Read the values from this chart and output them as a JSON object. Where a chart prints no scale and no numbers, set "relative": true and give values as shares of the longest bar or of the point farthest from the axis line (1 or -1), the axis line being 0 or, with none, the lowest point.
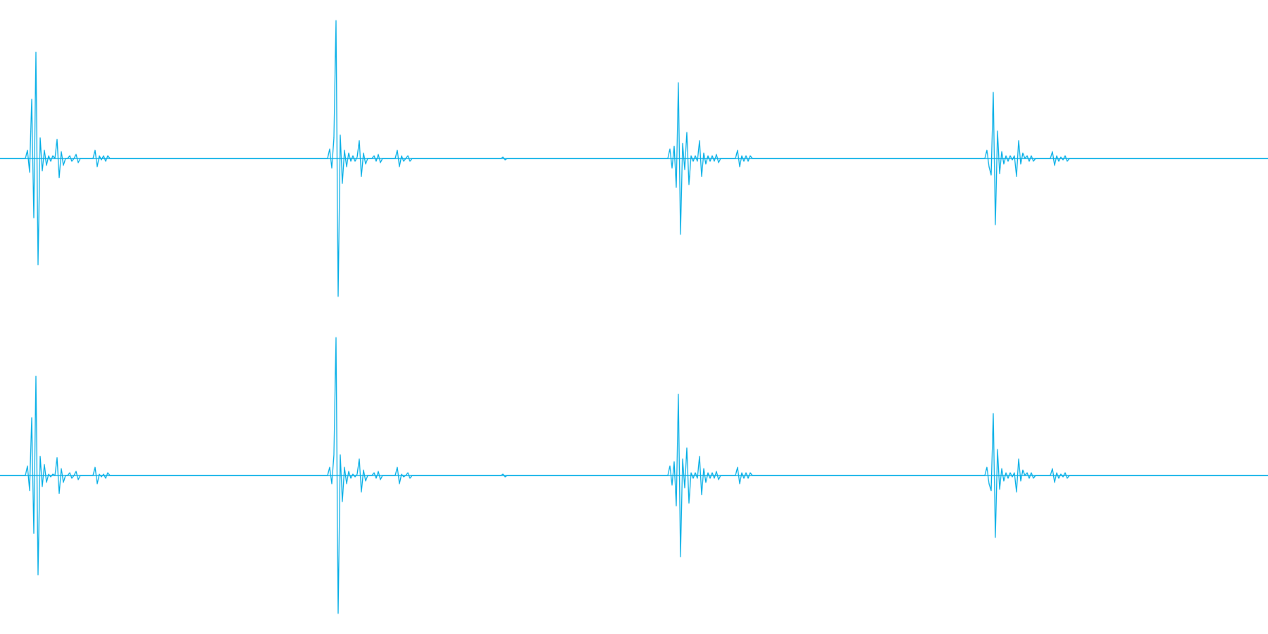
{
  "chart_data": [
    {
      "type": "line",
      "relative": true,
      "color": "#00ade6",
      "ref_lines": [
        {
          "axis": "y",
          "value": 0,
          "color": "#00ade6"
        }
      ],
      "categories": [
        null,
        null,
        null,
        null,
        null,
        null,
        null,
        null,
        null,
        null,
        null,
        null,
        null,
        null,
        null,
        null,
        null,
        null,
        null,
        null,
        null,
        null,
        null,
        null,
        null,
        null,
        null,
        null,
        null,
        null,
        null,
        null,
        null,
        null,
        null,
        null,
        null,
        null,
        null,
        null,
        null,
        null,
        null,
        null,
        null,
        null,
        null,
        null,
        null,
        null,
        null,
        null,
        null,
        null,
        null,
        null,
        null,
        null,
        null,
        null,
        null,
        null,
        null,
        null,
        null,
        null,
        null,
        null,
        null,
        null,
        null,
        null,
        null,
        null,
        null,
        null,
        null,
        null,
        null,
        null,
        null,
        null,
        null,
        null,
        null,
        null,
        null,
        null,
        null,
        null,
        null,
        null,
        null,
        null,
        null,
        null,
        null,
        null,
        null,
        null,
        null,
        null,
        null,
        null,
        null,
        null,
        null,
        null,
        null,
        null,
        null,
        null,
        null,
        null,
        null,
        null,
        null,
        null,
        null,
        null,
        null,
        null,
        null,
        null,
        null,
        null,
        null,
        null,
        null,
        null,
        null,
        null,
        null,
        null,
        null,
        null,
        null,
        null,
        null,
        null,
        null,
        null,
        null,
        null,
        null,
        null,
        null,
        null,
        null,
        null,
        null,
        null,
        null,
        null,
        null,
        null,
        null,
        null,
        null,
        null,
        null,
        null,
        null,
        null,
        null,
        null,
        null,
        null,
        null,
        null,
        null,
        null,
        null,
        null,
        null,
        null,
        null,
        null,
        null,
        null,
        null,
        null,
        null,
        null,
        null,
        null,
        null,
        null,
        null,
        null,
        null,
        null,
        null,
        null,
        null,
        null,
        null,
        null,
        null,
        null,
        null,
        null,
        null,
        null,
        null,
        null,
        null,
        null,
        null,
        null,
        null,
        null,
        null,
        null,
        null,
        null,
        null,
        null,
        null,
        null,
        null,
        null,
        null,
        null,
        null,
        null,
        null,
        null,
        null,
        null,
        null,
        null,
        null,
        null,
        null,
        null,
        null,
        null,
        null,
        null,
        null,
        null,
        null,
        null,
        null,
        null,
        null,
        null,
        null,
        null,
        null,
        null,
        null,
        null,
        null,
        null,
        null,
        null,
        null,
        null,
        null,
        null,
        null,
        null,
        null,
        null,
        null,
        null,
        null,
        null,
        null,
        null,
        null,
        null,
        null,
        null,
        null,
        null,
        null,
        null,
        null,
        null,
        null,
        null,
        null,
        null,
        null,
        null,
        null,
        null,
        null,
        null,
        null,
        null,
        null,
        null,
        null,
        null,
        null,
        null,
        null,
        null,
        null,
        null,
        null,
        null,
        null,
        null,
        null,
        null,
        null,
        null,
        null,
        null,
        null,
        null,
        null,
        null,
        null,
        null,
        null,
        null,
        null,
        null,
        null,
        null,
        null,
        null,
        null,
        null,
        null,
        null,
        null,
        null,
        null,
        null,
        null,
        null,
        null,
        null,
        null,
        null,
        null,
        null,
        null,
        null,
        null,
        null,
        null,
        null,
        null,
        null,
        null,
        null,
        null,
        null,
        null,
        null,
        null,
        null,
        null,
        null,
        null,
        null,
        null,
        null,
        null,
        null,
        null,
        null,
        null,
        null,
        null,
        null,
        null,
        null,
        null,
        null,
        null,
        null,
        null,
        null,
        null,
        null,
        null,
        null,
        null,
        null,
        null,
        null,
        null,
        null,
        null,
        null,
        null,
        null,
        null,
        null,
        null,
        null,
        null,
        null,
        null,
        null,
        null,
        null,
        null,
        null,
        null,
        null,
        null,
        null,
        null,
        null,
        null,
        null,
        null,
        null,
        null,
        null,
        null,
        null,
        null,
        null,
        null,
        null,
        null,
        null,
        null,
        null,
        null,
        null,
        null,
        null,
        null,
        null,
        null,
        null,
        null,
        null,
        null,
        null,
        null,
        null,
        null,
        null,
        null,
        null,
        null,
        null,
        null,
        null,
        null,
        null,
        null,
        null,
        null,
        null,
        null,
        null,
        null,
        null,
        null,
        null,
        null,
        null,
        null,
        null,
        null,
        null,
        null,
        null,
        null,
        null,
        null,
        null,
        null,
        null,
        null,
        null,
        null,
        null,
        null,
        null,
        null,
        null,
        null,
        null,
        null,
        null,
        null,
        null,
        null,
        null,
        null,
        null,
        null,
        null,
        null,
        null,
        null,
        null,
        null,
        null,
        null,
        null,
        null,
        null,
        null,
        null,
        null,
        null,
        null,
        null,
        null,
        null,
        null,
        null,
        null,
        null,
        null,
        null,
        null,
        null,
        null,
        null,
        null,
        null,
        null,
        null,
        null,
        null,
        null,
        null,
        null,
        null,
        null,
        null,
        null,
        null,
        null,
        null,
        null,
        null,
        null,
        null,
        null,
        null,
        null,
        null,
        null,
        null,
        null,
        null,
        null,
        null,
        null,
        null,
        null,
        null,
        null,
        null,
        null,
        null,
        null,
        null,
        null,
        null,
        null,
        null,
        null,
        null,
        null,
        null,
        null,
        null,
        null,
        null,
        null,
        null,
        null,
        null,
        null,
        null,
        null,
        null,
        null,
        null,
        null,
        null,
        null,
        null,
        null,
        null,
        null,
        null,
        null,
        null,
        null,
        null,
        null
      ],
      "values": [
        0,
        0,
        0,
        0,
        0,
        0,
        0,
        0,
        0,
        0,
        0,
        0,
        0,
        0.06,
        -0.1,
        0.43,
        -0.43,
        0.77,
        -0.77,
        0.15,
        -0.09,
        0.06,
        -0.05,
        0.02,
        -0.02,
        0.02,
        0,
        0.14,
        -0.14,
        0.05,
        -0.05,
        0,
        0,
        0.02,
        -0.02,
        0,
        0.03,
        -0.03,
        0,
        0,
        0,
        0,
        0,
        0,
        0,
        0.06,
        -0.06,
        0.02,
        -0.01,
        0.02,
        -0.02,
        0.02,
        0,
        0,
        0,
        0,
        0,
        0,
        0,
        0,
        0,
        0,
        0,
        0,
        0,
        0,
        0,
        0,
        0,
        0,
        0,
        0,
        0,
        0,
        0,
        0,
        0,
        0,
        0,
        0,
        0,
        0,
        0,
        0,
        0,
        0,
        0,
        0,
        0,
        0,
        0,
        0,
        0,
        0,
        0,
        0,
        0,
        0,
        0,
        0,
        0,
        0,
        0,
        0,
        0,
        0,
        0,
        0,
        0,
        0,
        0,
        0,
        0,
        0,
        0,
        0,
        0,
        0,
        0,
        0,
        0,
        0,
        0,
        0,
        0,
        0,
        0,
        0,
        0,
        0,
        0,
        0,
        0,
        0,
        0,
        0,
        0,
        0,
        0,
        0,
        0,
        0,
        0,
        0,
        0,
        0,
        0,
        0,
        0,
        0,
        0,
        0,
        0,
        0,
        0,
        0,
        0.07,
        -0.07,
        0.15,
        1,
        -1,
        0.17,
        -0.18,
        0.06,
        -0.06,
        0.04,
        -0.02,
        0.02,
        -0.02,
        0.01,
        0.13,
        -0.13,
        0.04,
        -0.04,
        0,
        0,
        0,
        0.02,
        -0.02,
        0.03,
        -0.03,
        0,
        0,
        0,
        0,
        0,
        0,
        0,
        0.06,
        -0.06,
        0.02,
        -0.02,
        0,
        0.02,
        -0.02,
        0,
        0,
        0,
        0,
        0,
        0,
        0,
        0,
        0,
        0,
        0,
        0,
        0,
        0,
        0,
        0,
        0,
        0,
        0,
        0,
        0,
        0,
        0,
        0,
        0,
        0,
        0,
        0,
        0,
        0,
        0,
        0,
        0,
        0,
        0,
        0,
        0,
        0,
        0,
        0,
        0,
        0,
        0,
        0.01,
        -0.01,
        0,
        0,
        0,
        0,
        0,
        0,
        0,
        0,
        0,
        0,
        0,
        0,
        0,
        0,
        0,
        0,
        0,
        0,
        0,
        0,
        0,
        0,
        0,
        0,
        0,
        0,
        0,
        0,
        0,
        0,
        0,
        0,
        0,
        0,
        0,
        0,
        0,
        0,
        0,
        0,
        0,
        0,
        0,
        0,
        0,
        0,
        0,
        0,
        0,
        0,
        0,
        0,
        0,
        0,
        0,
        0,
        0,
        0,
        0,
        0,
        0,
        0,
        0,
        0,
        0,
        0,
        0,
        0,
        0,
        0,
        0,
        0,
        0,
        0,
        0,
        0,
        0,
        0.07,
        -0.07,
        0.09,
        -0.21,
        0.55,
        -0.55,
        0.11,
        -0.08,
        0.19,
        -0.19,
        0.02,
        -0.02,
        0.02,
        -0.02,
        0.13,
        -0.13,
        0.04,
        -0.04,
        0.02,
        -0.02,
        0.02,
        -0.02,
        0.03,
        -0.03,
        0,
        0,
        0,
        0,
        0,
        0,
        0,
        0,
        0.06,
        -0.06,
        0.02,
        -0.02,
        0.02,
        -0.02,
        0.02,
        0,
        0,
        0,
        0,
        0,
        0,
        0,
        0,
        0,
        0,
        0,
        0,
        0,
        0,
        0,
        0,
        0,
        0,
        0,
        0,
        0,
        0,
        0,
        0,
        0,
        0,
        0,
        0,
        0,
        0,
        0,
        0,
        0,
        0,
        0,
        0,
        0,
        0,
        0,
        0,
        0,
        0,
        0,
        0,
        0,
        0,
        0,
        0,
        0,
        0,
        0,
        0,
        0,
        0,
        0,
        0,
        0,
        0,
        0,
        0,
        0,
        0,
        0,
        0,
        0,
        0,
        0,
        0,
        0,
        0,
        0,
        0,
        0,
        0,
        0,
        0,
        0,
        0,
        0,
        0,
        0,
        0,
        0,
        0,
        0,
        0,
        0,
        0,
        0,
        0,
        0,
        0,
        0,
        0,
        0,
        0,
        0,
        0,
        0,
        0,
        0,
        0,
        0,
        0,
        0,
        0,
        0,
        0,
        0,
        0,
        0,
        0.06,
        -0.06,
        -0.12,
        0.48,
        -0.48,
        0.2,
        -0.11,
        0.05,
        -0.04,
        0.02,
        -0.02,
        0.02,
        -0.01,
        0.02,
        -0.13,
        0.13,
        -0.04,
        0.04,
        0,
        0.02,
        -0.02,
        0.02,
        -0.02,
        0,
        0,
        0,
        0,
        0,
        0,
        0,
        0,
        0.05,
        -0.05,
        0.02,
        -0.02,
        0.01,
        -0.01,
        0.02,
        -0.02,
        0,
        0,
        0,
        0,
        0,
        0,
        0,
        0,
        0,
        0,
        0,
        0,
        0,
        0,
        0,
        0,
        0,
        0,
        0,
        0,
        0,
        0,
        0,
        0,
        0,
        0,
        0,
        0,
        0,
        0,
        0,
        0,
        0,
        0,
        0,
        0,
        0,
        0,
        0,
        0,
        0,
        0,
        0,
        0,
        0,
        0,
        0,
        0,
        0,
        0,
        0,
        0,
        0,
        0,
        0,
        0,
        0,
        0,
        0,
        0,
        0,
        0,
        0,
        0,
        0,
        0,
        0,
        0,
        0,
        0,
        0,
        0,
        0,
        0,
        0,
        0,
        0,
        0,
        0,
        0,
        0,
        0,
        0,
        0,
        0,
        0,
        0,
        0,
        0,
        0,
        0,
        0,
        0,
        0,
        0
      ]
    },
    {
      "type": "line",
      "relative": true,
      "color": "#00ade6",
      "ref_lines": [
        {
          "axis": "y",
          "value": 0,
          "color": "#00ade6"
        }
      ],
      "categories": [
        null,
        null,
        null,
        null,
        null,
        null,
        null,
        null,
        null,
        null,
        null,
        null,
        null,
        null,
        null,
        null,
        null,
        null,
        null,
        null,
        null,
        null,
        null,
        null,
        null,
        null,
        null,
        null,
        null,
        null,
        null,
        null,
        null,
        null,
        null,
        null,
        null,
        null,
        null,
        null,
        null,
        null,
        null,
        null,
        null,
        null,
        null,
        null,
        null,
        null,
        null,
        null,
        null,
        null,
        null,
        null,
        null,
        null,
        null,
        null,
        null,
        null,
        null,
        null,
        null,
        null,
        null,
        null,
        null,
        null,
        null,
        null,
        null,
        null,
        null,
        null,
        null,
        null,
        null,
        null,
        null,
        null,
        null,
        null,
        null,
        null,
        null,
        null,
        null,
        null,
        null,
        null,
        null,
        null,
        null,
        null,
        null,
        null,
        null,
        null,
        null,
        null,
        null,
        null,
        null,
        null,
        null,
        null,
        null,
        null,
        null,
        null,
        null,
        null,
        null,
        null,
        null,
        null,
        null,
        null,
        null,
        null,
        null,
        null,
        null,
        null,
        null,
        null,
        null,
        null,
        null,
        null,
        null,
        null,
        null,
        null,
        null,
        null,
        null,
        null,
        null,
        null,
        null,
        null,
        null,
        null,
        null,
        null,
        null,
        null,
        null,
        null,
        null,
        null,
        null,
        null,
        null,
        null,
        null,
        null,
        null,
        null,
        null,
        null,
        null,
        null,
        null,
        null,
        null,
        null,
        null,
        null,
        null,
        null,
        null,
        null,
        null,
        null,
        null,
        null,
        null,
        null,
        null,
        null,
        null,
        null,
        null,
        null,
        null,
        null,
        null,
        null,
        null,
        null,
        null,
        null,
        null,
        null,
        null,
        null,
        null,
        null,
        null,
        null,
        null,
        null,
        null,
        null,
        null,
        null,
        null,
        null,
        null,
        null,
        null,
        null,
        null,
        null,
        null,
        null,
        null,
        null,
        null,
        null,
        null,
        null,
        null,
        null,
        null,
        null,
        null,
        null,
        null,
        null,
        null,
        null,
        null,
        null,
        null,
        null,
        null,
        null,
        null,
        null,
        null,
        null,
        null,
        null,
        null,
        null,
        null,
        null,
        null,
        null,
        null,
        null,
        null,
        null,
        null,
        null,
        null,
        null,
        null,
        null,
        null,
        null,
        null,
        null,
        null,
        null,
        null,
        null,
        null,
        null,
        null,
        null,
        null,
        null,
        null,
        null,
        null,
        null,
        null,
        null,
        null,
        null,
        null,
        null,
        null,
        null,
        null,
        null,
        null,
        null,
        null,
        null,
        null,
        null,
        null,
        null,
        null,
        null,
        null,
        null,
        null,
        null,
        null,
        null,
        null,
        null,
        null,
        null,
        null,
        null,
        null,
        null,
        null,
        null,
        null,
        null,
        null,
        null,
        null,
        null,
        null,
        null,
        null,
        null,
        null,
        null,
        null,
        null,
        null,
        null,
        null,
        null,
        null,
        null,
        null,
        null,
        null,
        null,
        null,
        null,
        null,
        null,
        null,
        null,
        null,
        null,
        null,
        null,
        null,
        null,
        null,
        null,
        null,
        null,
        null,
        null,
        null,
        null,
        null,
        null,
        null,
        null,
        null,
        null,
        null,
        null,
        null,
        null,
        null,
        null,
        null,
        null,
        null,
        null,
        null,
        null,
        null,
        null,
        null,
        null,
        null,
        null,
        null,
        null,
        null,
        null,
        null,
        null,
        null,
        null,
        null,
        null,
        null,
        null,
        null,
        null,
        null,
        null,
        null,
        null,
        null,
        null,
        null,
        null,
        null,
        null,
        null,
        null,
        null,
        null,
        null,
        null,
        null,
        null,
        null,
        null,
        null,
        null,
        null,
        null,
        null,
        null,
        null,
        null,
        null,
        null,
        null,
        null,
        null,
        null,
        null,
        null,
        null,
        null,
        null,
        null,
        null,
        null,
        null,
        null,
        null,
        null,
        null,
        null,
        null,
        null,
        null,
        null,
        null,
        null,
        null,
        null,
        null,
        null,
        null,
        null,
        null,
        null,
        null,
        null,
        null,
        null,
        null,
        null,
        null,
        null,
        null,
        null,
        null,
        null,
        null,
        null,
        null,
        null,
        null,
        null,
        null,
        null,
        null,
        null,
        null,
        null,
        null,
        null,
        null,
        null,
        null,
        null,
        null,
        null,
        null,
        null,
        null,
        null,
        null,
        null,
        null,
        null,
        null,
        null,
        null,
        null,
        null,
        null,
        null,
        null,
        null,
        null,
        null,
        null,
        null,
        null,
        null,
        null,
        null,
        null,
        null,
        null,
        null,
        null,
        null,
        null,
        null,
        null,
        null,
        null,
        null,
        null,
        null,
        null,
        null,
        null,
        null,
        null,
        null,
        null,
        null,
        null,
        null,
        null,
        null,
        null,
        null,
        null,
        null,
        null,
        null,
        null,
        null,
        null,
        null,
        null,
        null,
        null,
        null,
        null,
        null,
        null,
        null,
        null,
        null,
        null,
        null,
        null,
        null,
        null,
        null,
        null,
        null,
        null,
        null,
        null,
        null,
        null,
        null,
        null,
        null,
        null,
        null,
        null,
        null,
        null,
        null,
        null,
        null,
        null,
        null,
        null,
        null,
        null,
        null,
        null,
        null,
        null,
        null,
        null,
        null
      ],
      "values": [
        0,
        0,
        0,
        0,
        0,
        0,
        0,
        0,
        0,
        0,
        0,
        0,
        0,
        0.07,
        -0.11,
        0.42,
        -0.42,
        0.72,
        -0.72,
        0.14,
        -0.08,
        0.08,
        -0.05,
        0.01,
        -0.01,
        0.01,
        0,
        0.13,
        -0.13,
        0.05,
        -0.05,
        0,
        0,
        0.02,
        -0.02,
        0,
        0.03,
        -0.03,
        0,
        0,
        0,
        0,
        0,
        0,
        0,
        0.06,
        -0.06,
        0.01,
        -0.01,
        0.01,
        -0.02,
        0.02,
        0,
        0,
        0,
        0,
        0,
        0,
        0,
        0,
        0,
        0,
        0,
        0,
        0,
        0,
        0,
        0,
        0,
        0,
        0,
        0,
        0,
        0,
        0,
        0,
        0,
        0,
        0,
        0,
        0,
        0,
        0,
        0,
        0,
        0,
        0,
        0,
        0,
        0,
        0,
        0,
        0,
        0,
        0,
        0,
        0,
        0,
        0,
        0,
        0,
        0,
        0,
        0,
        0,
        0,
        0,
        0,
        0,
        0,
        0,
        0,
        0,
        0,
        0,
        0,
        0,
        0,
        0,
        0,
        0,
        0,
        0,
        0,
        0,
        0,
        0,
        0,
        0,
        0,
        0,
        0,
        0,
        0,
        0,
        0,
        0,
        0,
        0,
        0,
        0,
        0,
        0,
        0,
        0,
        0,
        0,
        0,
        0,
        0,
        0,
        0,
        0,
        0,
        0,
        0,
        0.06,
        -0.06,
        0.15,
        1,
        -1,
        0.15,
        -0.19,
        0.06,
        -0.06,
        0.03,
        -0.02,
        0.01,
        -0.01,
        0.01,
        0.12,
        -0.12,
        0.04,
        -0.04,
        0,
        0,
        0,
        0.02,
        -0.02,
        0.03,
        -0.03,
        0,
        0,
        0,
        0,
        0,
        0,
        0,
        0.06,
        -0.06,
        0.01,
        -0.01,
        0,
        0.02,
        -0.02,
        0,
        0,
        0,
        0,
        0,
        0,
        0,
        0,
        0,
        0,
        0,
        0,
        0,
        0,
        0,
        0,
        0,
        0,
        0,
        0,
        0,
        0,
        0,
        0,
        0,
        0,
        0,
        0,
        0,
        0,
        0,
        0,
        0,
        0,
        0,
        0,
        0,
        0,
        0,
        0,
        0,
        0,
        0,
        0.01,
        -0.01,
        0,
        0,
        0,
        0,
        0,
        0,
        0,
        0,
        0,
        0,
        0,
        0,
        0,
        0,
        0,
        0,
        0,
        0,
        0,
        0,
        0,
        0,
        0,
        0,
        0,
        0,
        0,
        0,
        0,
        0,
        0,
        0,
        0,
        0,
        0,
        0,
        0,
        0,
        0,
        0,
        0,
        0,
        0,
        0,
        0,
        0,
        0,
        0,
        0,
        0,
        0,
        0,
        0,
        0,
        0,
        0,
        0,
        0,
        0,
        0,
        0,
        0,
        0,
        0,
        0,
        0,
        0,
        0,
        0,
        0,
        0,
        0,
        0,
        0,
        0,
        0,
        0,
        0.07,
        -0.07,
        0.1,
        -0.22,
        0.59,
        -0.59,
        0.12,
        -0.09,
        0.2,
        -0.2,
        0.02,
        -0.02,
        0.02,
        -0.02,
        0.14,
        -0.14,
        0.05,
        -0.05,
        0.02,
        -0.02,
        0.02,
        -0.02,
        0.03,
        -0.03,
        0,
        0,
        0,
        0,
        0,
        0,
        0,
        0,
        0.06,
        -0.06,
        0.02,
        -0.02,
        0.02,
        -0.02,
        0.02,
        0,
        0,
        0,
        0,
        0,
        0,
        0,
        0,
        0,
        0,
        0,
        0,
        0,
        0,
        0,
        0,
        0,
        0,
        0,
        0,
        0,
        0,
        0,
        0,
        0,
        0,
        0,
        0,
        0,
        0,
        0,
        0,
        0,
        0,
        0,
        0,
        0,
        0,
        0,
        0,
        0,
        0,
        0,
        0,
        0,
        0,
        0,
        0,
        0,
        0,
        0,
        0,
        0,
        0,
        0,
        0,
        0,
        0,
        0,
        0,
        0,
        0,
        0,
        0,
        0,
        0,
        0,
        0,
        0,
        0,
        0,
        0,
        0,
        0,
        0,
        0,
        0,
        0,
        0,
        0,
        0,
        0,
        0,
        0,
        0,
        0,
        0,
        0,
        0,
        0,
        0,
        0,
        0,
        0,
        0,
        0,
        0,
        0,
        0,
        0,
        0,
        0,
        0,
        0,
        0,
        0,
        0,
        0,
        0,
        0,
        0,
        0.06,
        -0.06,
        -0.11,
        0.45,
        -0.45,
        0.19,
        -0.1,
        0.05,
        -0.04,
        0.02,
        -0.02,
        0.02,
        -0.01,
        0.02,
        -0.12,
        0.12,
        -0.04,
        0.04,
        0,
        0.02,
        -0.02,
        0.02,
        -0.02,
        0,
        0,
        0,
        0,
        0,
        0,
        0,
        0,
        0.05,
        -0.05,
        0.02,
        -0.02,
        0.01,
        -0.01,
        0.02,
        -0.02,
        0,
        0,
        0,
        0,
        0,
        0,
        0,
        0,
        0,
        0,
        0,
        0,
        0,
        0,
        0,
        0,
        0,
        0,
        0,
        0,
        0,
        0,
        0,
        0,
        0,
        0,
        0,
        0,
        0,
        0,
        0,
        0,
        0,
        0,
        0,
        0,
        0,
        0,
        0,
        0,
        0,
        0,
        0,
        0,
        0,
        0,
        0,
        0,
        0,
        0,
        0,
        0,
        0,
        0,
        0,
        0,
        0,
        0,
        0,
        0,
        0,
        0,
        0,
        0,
        0,
        0,
        0,
        0,
        0,
        0,
        0,
        0,
        0,
        0,
        0,
        0,
        0,
        0,
        0,
        0,
        0,
        0,
        0,
        0,
        0,
        0,
        0,
        0,
        0,
        0,
        0,
        0,
        0,
        0,
        0
      ]
    }
  ]
}
